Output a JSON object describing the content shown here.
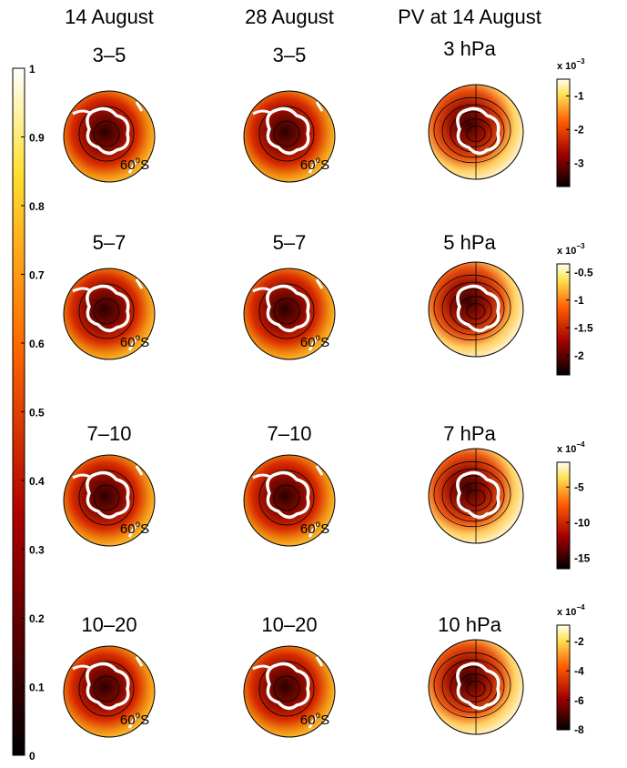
{
  "columns": [
    "14 August",
    "28 August",
    "PV at 14 August"
  ],
  "rows": [
    {
      "label": "3–5",
      "pv_level": "3 hPa",
      "pv_scale": {
        "base": "x 10",
        "exponent": "−3",
        "lim": [
          -3.7,
          -0.5
        ],
        "ticks": [
          -1,
          -2,
          -3
        ]
      }
    },
    {
      "label": "5–7",
      "pv_level": "5 hPa",
      "pv_scale": {
        "base": "x 10",
        "exponent": "−3",
        "lim": [
          -2.35,
          -0.35
        ],
        "ticks": [
          -0.5,
          -1,
          -1.5,
          -2
        ]
      }
    },
    {
      "label": "7–10",
      "pv_level": "7 hPa",
      "pv_scale": {
        "base": "x 10",
        "exponent": "−4",
        "lim": [
          -16.5,
          -1.5
        ],
        "ticks": [
          -5,
          -10,
          -15
        ]
      }
    },
    {
      "label": "10–20",
      "pv_level": "10 hPa",
      "pv_scale": {
        "base": "x 10",
        "exponent": "−4",
        "lim": [
          -8,
          -0.9
        ],
        "ticks": [
          -2,
          -4,
          -6,
          -8
        ]
      }
    }
  ],
  "latitude_label": {
    "value": "60",
    "degree": "o",
    "hemisphere": "S"
  },
  "colorbar": {
    "lim": [
      0,
      1
    ],
    "ticks": [
      0,
      0.1,
      0.2,
      0.3,
      0.4,
      0.5,
      0.6,
      0.7,
      0.8,
      0.9,
      1
    ]
  }
}
